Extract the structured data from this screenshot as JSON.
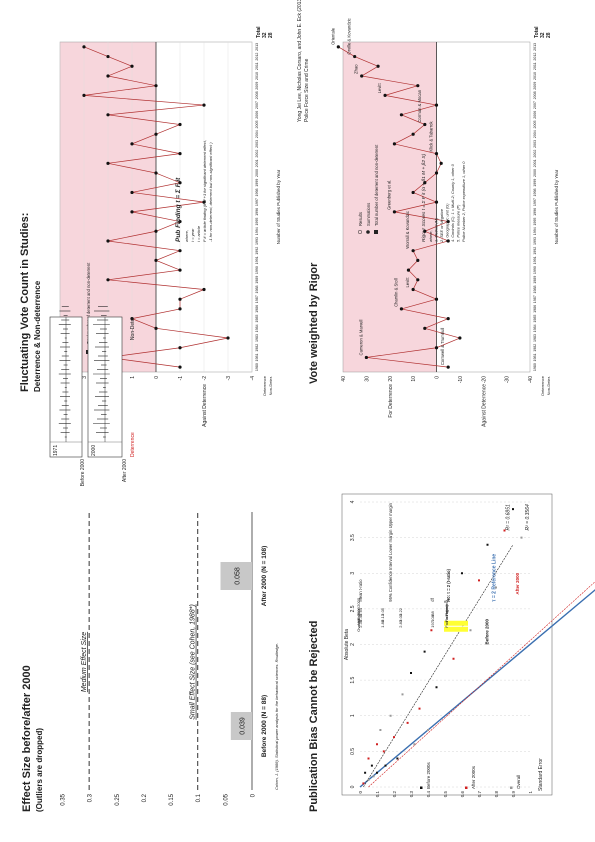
{
  "panel1": {
    "title": "Fluctuating Vote Count in Studies:",
    "subtitle": "Deterrence & Non-deterrence",
    "ylabel_top": "For Deterrence",
    "ylabel_bottom": "Against Deterrence",
    "xlabel": "Number of Studies Published by Year",
    "legend": [
      "Results",
      "Summations",
      "Total number of deterrent and non-deterrent"
    ],
    "formula_title": "Pub Finding t = Σ F it",
    "formula_lines": [
      "where,",
      "t = year",
      "i = article",
      "F it = article finding (if of +1 for significant deterrent effect,",
      "-1 for non-deterrent, deterrent but non-significant effect )"
    ],
    "row_labels": [
      "Deterrence",
      "Non-Deter."
    ],
    "total_label": "Total",
    "totals": [
      "32",
      "28"
    ],
    "chart_data": {
      "type": "line",
      "x": [
        1980,
        1981,
        1982,
        1983,
        1984,
        1985,
        1986,
        1987,
        1988,
        1989,
        1990,
        1991,
        1992,
        1993,
        1994,
        1995,
        1996,
        1997,
        1998,
        1999,
        2000,
        2001,
        2002,
        2003,
        2004,
        2005,
        2006,
        2007,
        2008,
        2009,
        2010,
        2011,
        2012,
        2013
      ],
      "y": [
        -1,
        2,
        -1,
        -3,
        0,
        1,
        -1,
        -1,
        -2,
        2,
        -1,
        0,
        -1,
        2,
        0,
        -1,
        1,
        -2,
        1,
        -1,
        0,
        2,
        -1,
        1,
        0,
        -1,
        2,
        -2,
        3,
        0,
        2,
        1,
        2,
        3
      ],
      "ylim": [
        -4,
        4
      ]
    }
  },
  "panel2": {
    "title": "Vote weighted by Rigor",
    "ylabel_top": "For Deterrence",
    "ylabel_bottom": "Against Deterrence",
    "xlabel": "Number of Studies Published by Year",
    "citation": [
      "Yong Jei Lee, Nicholas Corsaro, and John E. Eck (2013)",
      "Police Force Size and Crime"
    ],
    "legend": [
      "Results",
      "Summations",
      "Total number of deterrent and non-deterrent"
    ],
    "formula_title": "Rigour Scores t = Σ F it (α + β1 M + β2 S)",
    "formula_lines": [
      "where,",
      "1. Method (M)",
      "2. SEE or Negative ",
      "3. Geographic unit (G)",
      "4. Controls (C): 1 = Multi-2; County 1, other 0",
      "5. Police measure (P)",
      "Police Number 2, Police expenditure 1, other 0"
    ],
    "annotations": [
      "Cameron & Marvell",
      "Chamlin & Stoll",
      "Levitt",
      "Cornwell & Trumbull",
      "Greenberg et al.",
      "Klick & Tabarrok",
      "Corman & Mocan",
      "Levitt",
      "Zhao",
      "Worrall & Kovandzic",
      "Orientale",
      "Orville & Kovandzic"
    ],
    "row_labels": [
      "Deterrence",
      "Non-Deter."
    ],
    "total_label": "Total",
    "totals": [
      "32",
      "28"
    ],
    "chart_data": {
      "type": "line",
      "x": [
        1980,
        1981,
        1982,
        1983,
        1984,
        1985,
        1986,
        1987,
        1988,
        1989,
        1990,
        1991,
        1992,
        1993,
        1994,
        1995,
        1996,
        1997,
        1998,
        1999,
        2000,
        2001,
        2002,
        2003,
        2004,
        2005,
        2006,
        2007,
        2008,
        2009,
        2010,
        2011,
        2012,
        2013
      ],
      "y": [
        -5,
        30,
        0,
        -10,
        5,
        -5,
        15,
        0,
        10,
        8,
        12,
        8,
        10,
        -5,
        5,
        -5,
        18,
        0,
        10,
        5,
        0,
        -2,
        0,
        18,
        10,
        5,
        15,
        0,
        22,
        8,
        32,
        25,
        35,
        42
      ],
      "ylim": [
        -40,
        40
      ]
    }
  },
  "panel3": {
    "title": "Effect Size before/after 2000",
    "subtitle": "(Outliers are dropped)",
    "medium_label": "Medium Effect Size",
    "small_label": "Small Effect Size (see Cohen, 1988*)",
    "footnote": "Cohen, J. (1988). Statistical power analysis for the behavioral sciences. Routledge.",
    "chart_data": {
      "type": "bar",
      "categories": [
        "Before 2000 (N = 88)",
        "After 2000 (N = 108)"
      ],
      "values": [
        0.039,
        0.058
      ],
      "value_labels": [
        "0.039",
        "0.058"
      ],
      "yticks": [
        "0",
        "0.05",
        "0.1",
        "0.15",
        "0.2",
        "0.25",
        "0.3",
        "0.35"
      ],
      "ylim": [
        0,
        0.35
      ]
    },
    "forest": {
      "labels": [
        "1971",
        "Before 2000",
        "2000",
        "After 2000"
      ],
      "deterrence": "Deterrence",
      "non_deter": "Non-Deter"
    }
  },
  "panel4": {
    "title": "Publication Bias Cannot be Rejected",
    "ylabel": "Absolute Beta",
    "xlabel": "Standard Error",
    "table_headers": [
      "",
      "Mean t-ratio",
      "95% Confidence Interval Lower margin   Upper margin",
      "df",
      "H0: τ = 2 (t-ratio)"
    ],
    "table_rows": [
      [
        "Before 2000",
        "2.64",
        "2.05",
        "3.22",
        "88",
        "Reject"
      ],
      [
        "After 2000",
        "2.49",
        "2.13",
        "3.00",
        "108",
        "Fail to reject"
      ],
      [
        "Overall",
        "2.36",
        "1.88",
        "2.83",
        "197",
        "Fail to reject"
      ]
    ],
    "line_labels": [
      "τ = 2 Reference Line",
      "After 2000",
      "Before 2000",
      "R² = 0.6851",
      "R² = 0.3564"
    ],
    "legend": [
      "Before 2000s",
      "After 2000s",
      "Overall"
    ],
    "yticks": [
      "0",
      "0.5",
      "1",
      "1.5",
      "2",
      "2.5",
      "3",
      "3.5",
      "4"
    ],
    "xticks": [
      "0",
      "0.1",
      "0.2",
      "0.3",
      "0.4",
      "0.5",
      "0.6",
      "0.7",
      "0.8",
      "0.9",
      "1"
    ],
    "chart_data": {
      "type": "scatter",
      "x": [
        0.02,
        0.03,
        0.05,
        0.05,
        0.07,
        0.08,
        0.1,
        0.1,
        0.12,
        0.14,
        0.15,
        0.18,
        0.2,
        0.22,
        0.25,
        0.28,
        0.3,
        0.32,
        0.35,
        0.38,
        0.4,
        0.42,
        0.45,
        0.5,
        0.55,
        0.6,
        0.65,
        0.7,
        0.75,
        0.8,
        0.85,
        0.9,
        0.95
      ],
      "y": [
        0.05,
        0.2,
        0.1,
        0.4,
        0.3,
        0.15,
        0.6,
        0.2,
        0.8,
        0.5,
        0.3,
        1.0,
        0.7,
        0.4,
        1.3,
        0.9,
        1.6,
        0.6,
        1.1,
        1.9,
        0.8,
        2.2,
        1.4,
        2.6,
        1.8,
        3.0,
        2.2,
        2.9,
        3.4,
        2.8,
        3.6,
        3.9,
        3.5
      ],
      "xlim": [
        0,
        1
      ],
      "ylim": [
        0,
        4
      ]
    }
  },
  "colors": {
    "pink": "#f7d6dc",
    "line_red": "#b03030",
    "highlight_yellow": "#ffff33",
    "bar_gray": "#c8c8c8",
    "blue": "#3a6fb0",
    "red": "#d02020"
  }
}
